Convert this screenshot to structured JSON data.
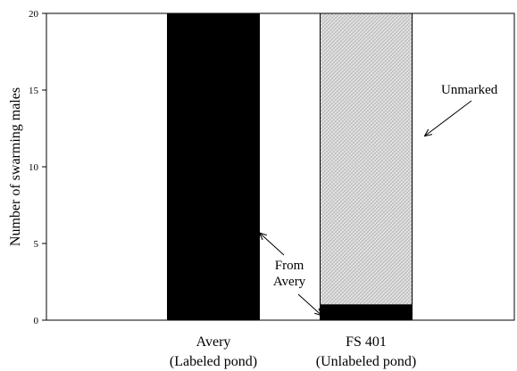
{
  "chart_data": {
    "type": "bar",
    "stacked": true,
    "categories": [
      [
        "Avery",
        "(Labeled pond)"
      ],
      [
        "FS 401",
        "(Unlabeled pond)"
      ]
    ],
    "series": [
      {
        "name": "From Avery",
        "values": [
          20,
          1
        ],
        "color": "#000000",
        "pattern": "solid"
      },
      {
        "name": "Unmarked",
        "values": [
          0,
          19
        ],
        "color": "#d9d9d9",
        "pattern": "crosshatch"
      }
    ],
    "ylabel": "Number of swarming males",
    "xlabel": "",
    "ylim": [
      0,
      20
    ],
    "yticks": [
      0,
      5,
      10,
      15,
      20
    ],
    "grid": false,
    "annotations": [
      {
        "lines": [
          "Unmarked"
        ],
        "target_category": 1,
        "target_series": "Unmarked",
        "target_value": 12
      },
      {
        "lines": [
          "From",
          "Avery"
        ],
        "target_category": 0,
        "target_series": "From Avery",
        "target_value": 5.7
      },
      {
        "lines": [
          "From",
          "Avery"
        ],
        "target_category": 1,
        "target_series": "From Avery",
        "target_value": 0.3
      }
    ],
    "annotation_label_text": [
      "From",
      "Avery"
    ],
    "unmarked_label": "Unmarked"
  }
}
